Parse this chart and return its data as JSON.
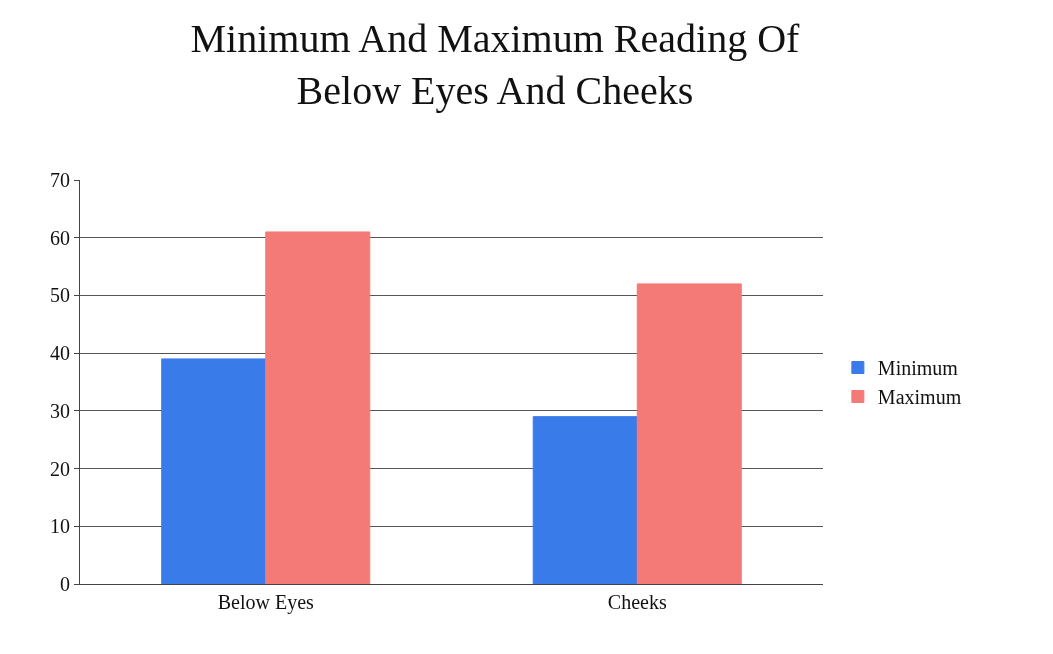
{
  "chart_data": {
    "type": "bar",
    "title": "Minimum And Maximum Reading Of Below Eyes And Cheeks",
    "categories": [
      "Below Eyes",
      "Cheeks"
    ],
    "series": [
      {
        "name": "Minimum",
        "color": "#3a7bea",
        "values": [
          39,
          29
        ]
      },
      {
        "name": "Maximum",
        "color": "#f47a78",
        "values": [
          61,
          52
        ]
      }
    ],
    "ylim": [
      0,
      70
    ],
    "yticks": [
      0,
      10,
      20,
      30,
      40,
      50,
      60,
      70
    ],
    "grid": "y",
    "legend": "right"
  }
}
